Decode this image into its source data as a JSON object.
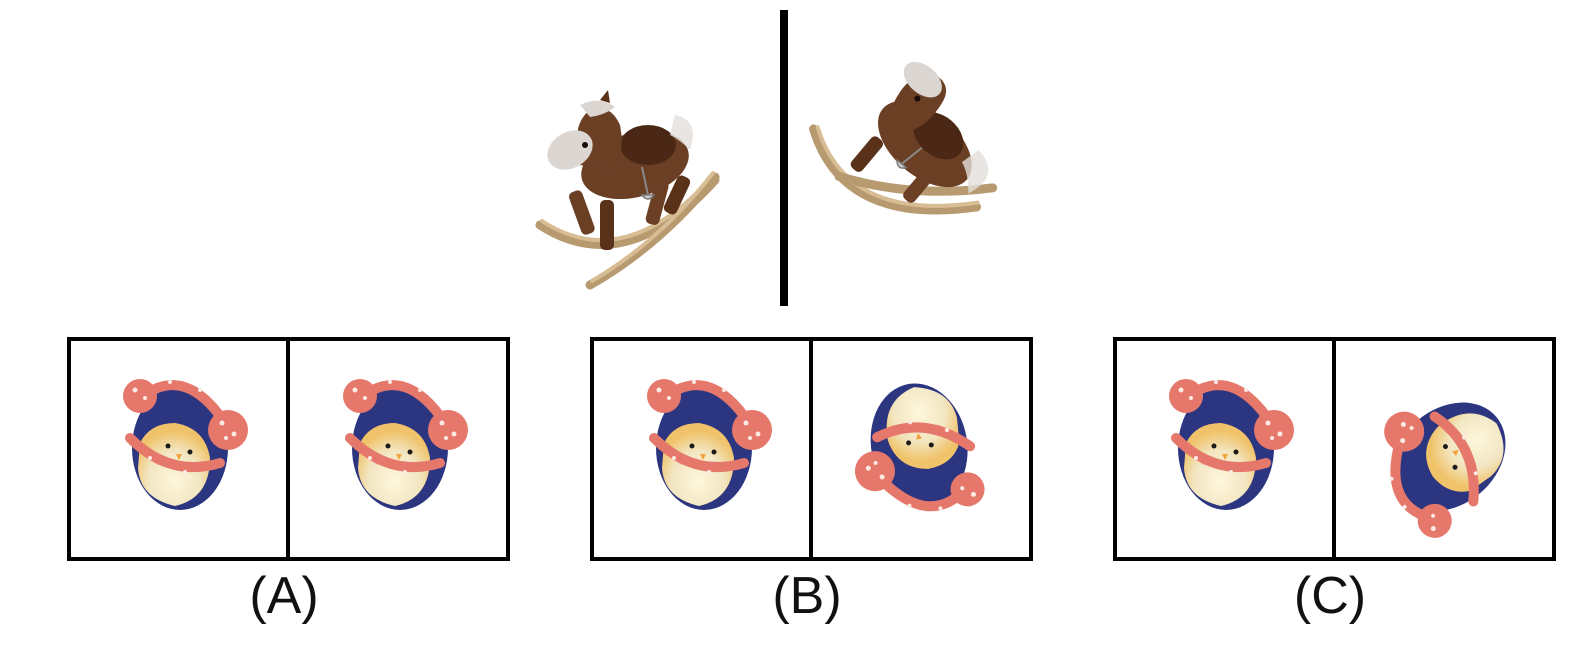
{
  "reference": {
    "left_object": "rocking-horse",
    "right_object": "rocking-horse"
  },
  "options": [
    {
      "label": "(A)",
      "left_object": "penguin-earmuffs",
      "right_object": "penguin-earmuffs"
    },
    {
      "label": "(B)",
      "left_object": "penguin-earmuffs",
      "right_object": "penguin-earmuffs"
    },
    {
      "label": "(C)",
      "left_object": "penguin-earmuffs",
      "right_object": "penguin-earmuffs"
    }
  ],
  "colors": {
    "horse_body": "#6b3f24",
    "horse_dark": "#4a2815",
    "horse_rocker": "#c8ab82",
    "horse_mane": "#d9d5d0",
    "penguin_body": "#2c3580",
    "penguin_belly": "#f2e6c2",
    "penguin_belly_glow": "#f0c36a",
    "earmuff": "#e5786b",
    "earmuff_dot": "#fbe9e4"
  }
}
